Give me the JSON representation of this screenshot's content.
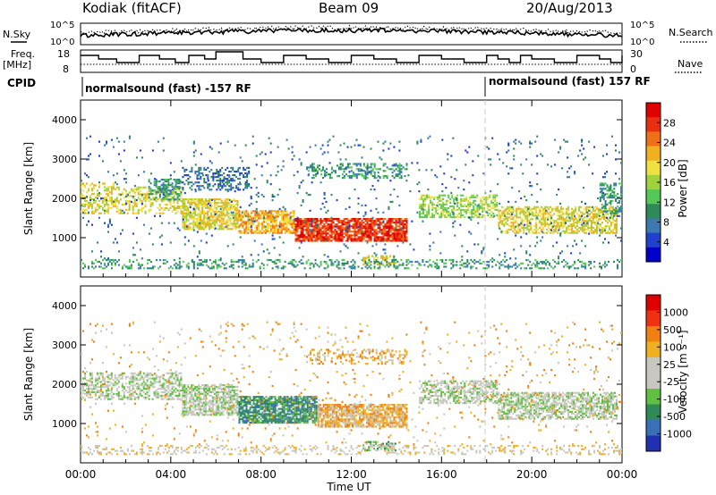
{
  "header": {
    "station": "Kodiak (fitACF)",
    "beam": "Beam 09",
    "date": "20/Aug/2013"
  },
  "side_labels": {
    "nsky": "N.Sky",
    "freq_line1": "Freq.",
    "freq_line2": "[MHz]",
    "cpid": "CPID",
    "nsearch": "N.Search",
    "nave": "Nave"
  },
  "top_axis_labels": {
    "noise_top": "10^5",
    "noise_bottom": "10^0",
    "freq_top": "18",
    "freq_bottom": "8",
    "nave_top": "30",
    "nave_bottom": "0"
  },
  "cpid_segments": [
    {
      "label": "normalsound (fast) -157 RF",
      "start_hour": 0,
      "end_hour": 18
    },
    {
      "label": "normalsound (fast) 157 RF",
      "start_hour": 18,
      "end_hour": 24
    }
  ],
  "colors": {
    "power_scale": [
      "#0000cc",
      "#2040d0",
      "#3a7ab0",
      "#2e8b57",
      "#55c855",
      "#a0d23c",
      "#f0e040",
      "#f0b020",
      "#f07018",
      "#e83010",
      "#e00000"
    ],
    "velocity_scale": [
      "#2030b0",
      "#3a70b8",
      "#2e8b57",
      "#60c040",
      "#c8c8c0",
      "#c8c8c0",
      "#f0b020",
      "#f08010",
      "#f03010",
      "#e00000"
    ]
  },
  "chart_data": [
    {
      "type": "heatmap",
      "name": "power",
      "ylabel": "Slant Range [km]",
      "ylim": [
        0,
        4500
      ],
      "yticks": [
        1000,
        2000,
        3000,
        4000
      ],
      "x_range_hours": [
        0,
        24
      ],
      "colorbar": {
        "label": "Power [dB]",
        "ticks": [
          "28",
          "24",
          "20",
          "16",
          "12",
          "8",
          "4"
        ]
      },
      "blobs": [
        {
          "x0": 0.0,
          "x1": 1.5,
          "r0": 1600,
          "r1": 2400,
          "c": 6,
          "d": 0.45
        },
        {
          "x0": 1.5,
          "x1": 4.5,
          "r0": 1600,
          "r1": 2300,
          "c": 6,
          "d": 0.4
        },
        {
          "x0": 3.0,
          "x1": 4.5,
          "r0": 1950,
          "r1": 2500,
          "c": 3,
          "d": 0.5
        },
        {
          "x0": 4.5,
          "x1": 7.0,
          "r0": 1200,
          "r1": 2000,
          "c": 6,
          "d": 0.75
        },
        {
          "x0": 4.5,
          "x1": 7.5,
          "r0": 2200,
          "r1": 2800,
          "c": 2,
          "d": 0.4
        },
        {
          "x0": 7.0,
          "x1": 9.5,
          "r0": 1100,
          "r1": 1700,
          "c": 7,
          "d": 0.8
        },
        {
          "x0": 9.5,
          "x1": 14.5,
          "r0": 900,
          "r1": 1500,
          "c": 9,
          "d": 0.85
        },
        {
          "x0": 10.0,
          "x1": 14.5,
          "r0": 2500,
          "r1": 2900,
          "c": 3,
          "d": 0.35
        },
        {
          "x0": 12.5,
          "x1": 14.0,
          "r0": 300,
          "r1": 550,
          "c": 6,
          "d": 0.5
        },
        {
          "x0": 15.0,
          "x1": 18.5,
          "r0": 1500,
          "r1": 2100,
          "c": 5,
          "d": 0.55
        },
        {
          "x0": 18.5,
          "x1": 23.8,
          "r0": 1100,
          "r1": 1800,
          "c": 6,
          "d": 0.6
        },
        {
          "x0": 23.0,
          "x1": 24.0,
          "r0": 1600,
          "r1": 2400,
          "c": 3,
          "d": 0.5
        },
        {
          "x0": 0.0,
          "x1": 24.0,
          "r0": 200,
          "r1": 450,
          "c": 3,
          "d": 0.3
        },
        {
          "x0": 0.0,
          "x1": 24.0,
          "r0": 450,
          "r1": 3600,
          "c": 2,
          "d": 0.03
        }
      ]
    },
    {
      "type": "heatmap",
      "name": "velocity",
      "ylabel": "Slant Range [km]",
      "xlabel": "Time UT",
      "ylim": [
        0,
        4500
      ],
      "yticks": [
        1000,
        2000,
        3000,
        4000
      ],
      "x_range_hours": [
        0,
        24
      ],
      "xticks": [
        "00:00",
        "04:00",
        "08:00",
        "12:00",
        "16:00",
        "20:00",
        "00:00"
      ],
      "colorbar": {
        "label": "Velocity [m s⁻¹]",
        "ticks": [
          "1000",
          "500",
          "100",
          "25",
          "-25",
          "-100",
          "-500",
          "-1000"
        ]
      },
      "blobs": [
        {
          "x0": 0.0,
          "x1": 4.5,
          "r0": 1600,
          "r1": 2300,
          "c": 4,
          "d": 0.5
        },
        {
          "x0": 4.5,
          "x1": 7.0,
          "r0": 1200,
          "r1": 2000,
          "c": 4,
          "d": 0.7
        },
        {
          "x0": 7.0,
          "x1": 10.5,
          "r0": 1000,
          "r1": 1700,
          "c": 2,
          "d": 0.8
        },
        {
          "x0": 10.5,
          "x1": 14.5,
          "r0": 900,
          "r1": 1500,
          "c": 6,
          "d": 0.8
        },
        {
          "x0": 12.5,
          "x1": 14.0,
          "r0": 300,
          "r1": 550,
          "c": 3,
          "d": 0.5
        },
        {
          "x0": 15.0,
          "x1": 18.5,
          "r0": 1500,
          "r1": 2100,
          "c": 4,
          "d": 0.6
        },
        {
          "x0": 18.5,
          "x1": 23.8,
          "r0": 1100,
          "r1": 1800,
          "c": 4,
          "d": 0.65
        },
        {
          "x0": 10.0,
          "x1": 14.5,
          "r0": 2500,
          "r1": 2900,
          "c": 6,
          "d": 0.3
        },
        {
          "x0": 0.0,
          "x1": 24.0,
          "r0": 200,
          "r1": 450,
          "c": 5,
          "d": 0.25
        },
        {
          "x0": 0.0,
          "x1": 24.0,
          "r0": 450,
          "r1": 3600,
          "c": 6,
          "d": 0.03
        }
      ]
    }
  ]
}
